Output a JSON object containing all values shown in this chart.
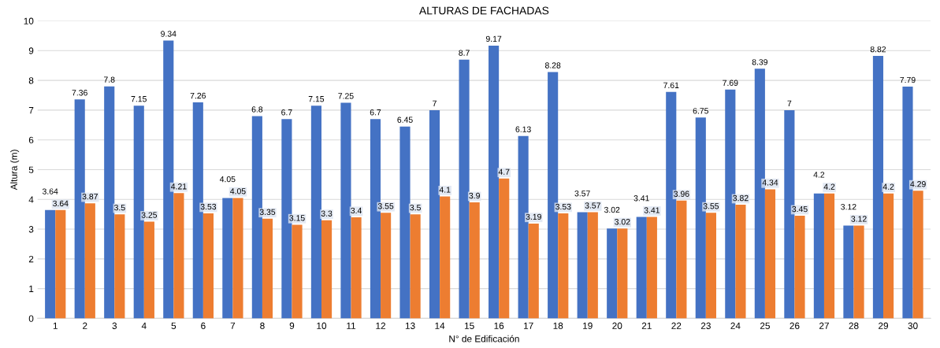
{
  "chart_data": {
    "type": "bar",
    "title": "ALTURAS DE FACHADAS",
    "xlabel": "N° de Edificación",
    "ylabel": "Altura (m)",
    "categories": [
      "1",
      "2",
      "3",
      "4",
      "5",
      "6",
      "7",
      "8",
      "9",
      "10",
      "11",
      "12",
      "13",
      "14",
      "15",
      "16",
      "17",
      "18",
      "19",
      "20",
      "21",
      "22",
      "23",
      "24",
      "25",
      "26",
      "27",
      "28",
      "29",
      "30"
    ],
    "series": [
      {
        "color": "#4472c4",
        "values": [
          3.64,
          7.36,
          7.8,
          7.15,
          9.34,
          7.26,
          4.05,
          6.8,
          6.7,
          7.15,
          7.25,
          6.7,
          6.45,
          7,
          8.7,
          9.17,
          6.13,
          8.28,
          3.57,
          3.02,
          3.41,
          7.61,
          6.75,
          7.69,
          8.39,
          7,
          4.2,
          3.12,
          8.82,
          7.79
        ]
      },
      {
        "color": "#ed7d31",
        "values": [
          3.64,
          3.87,
          3.5,
          3.25,
          4.21,
          3.53,
          4.05,
          3.35,
          3.15,
          3.3,
          3.4,
          3.55,
          3.5,
          4.1,
          3.9,
          4.7,
          3.19,
          3.53,
          3.57,
          3.02,
          3.41,
          3.96,
          3.55,
          3.82,
          4.34,
          3.45,
          4.2,
          3.12,
          4.2,
          4.29
        ]
      }
    ],
    "ylim": [
      0,
      10
    ],
    "yticks": [
      0,
      1,
      2,
      3,
      4,
      5,
      6,
      7,
      8,
      9,
      10
    ],
    "grid": "y",
    "data_labels": true,
    "legend": false
  }
}
